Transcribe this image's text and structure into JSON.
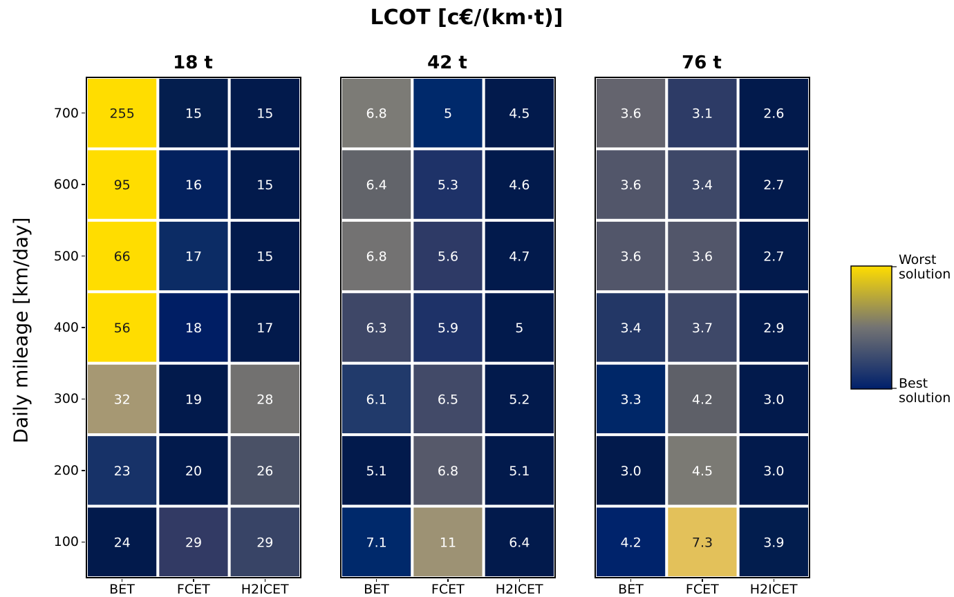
{
  "chart_data": {
    "type": "heatmap",
    "title": "LCOT [c€/(km·t)]",
    "ylabel": "Daily mileage [km/day]",
    "yticks": [
      "700",
      "600",
      "500",
      "400",
      "300",
      "200",
      "100"
    ],
    "xticks": [
      "BET",
      "FCET",
      "H2ICET"
    ],
    "colorbar": {
      "top_label": "Worst solution",
      "bottom_label": "Best solution",
      "colors": [
        "#FFDD00",
        "#737373",
        "#00206B"
      ]
    },
    "panels": [
      {
        "title": "18 t",
        "labels": [
          [
            "255",
            "15",
            "15"
          ],
          [
            "95",
            "16",
            "15"
          ],
          [
            "66",
            "17",
            "15"
          ],
          [
            "56",
            "18",
            "17"
          ],
          [
            "32",
            "19",
            "28"
          ],
          [
            "23",
            "20",
            "26"
          ],
          [
            "24",
            "29",
            "29"
          ]
        ],
        "colors": [
          [
            "#FFDD00",
            "#041E4E",
            "#021A4C"
          ],
          [
            "#FFDD00",
            "#03215E",
            "#021A4C"
          ],
          [
            "#FFDD00",
            "#0C2C65",
            "#021A4C"
          ],
          [
            "#FFDD00",
            "#001E64",
            "#021A4C"
          ],
          [
            "#A69873",
            "#021A4C",
            "#727170"
          ],
          [
            "#173268",
            "#021A4C",
            "#4A5166"
          ],
          [
            "#021A4C",
            "#323A64",
            "#384466"
          ]
        ],
        "text_dark": [
          [
            true,
            false,
            false
          ],
          [
            true,
            false,
            false
          ],
          [
            true,
            false,
            false
          ],
          [
            true,
            false,
            false
          ],
          [
            false,
            false,
            false
          ],
          [
            false,
            false,
            false
          ],
          [
            false,
            false,
            false
          ]
        ]
      },
      {
        "title": "42 t",
        "labels": [
          [
            "6.8",
            "5",
            "4.5"
          ],
          [
            "6.4",
            "5.3",
            "4.6"
          ],
          [
            "6.8",
            "5.6",
            "4.7"
          ],
          [
            "6.3",
            "5.9",
            "5"
          ],
          [
            "6.1",
            "6.5",
            "5.2"
          ],
          [
            "5.1",
            "6.8",
            "5.1"
          ],
          [
            "7.1",
            "11",
            "6.4"
          ]
        ],
        "colors": [
          [
            "#7C7B76",
            "#00296B",
            "#021A4C"
          ],
          [
            "#62646A",
            "#1E3268",
            "#021A4C"
          ],
          [
            "#737272",
            "#2E3A66",
            "#021A4C"
          ],
          [
            "#3E4767",
            "#1E3268",
            "#021A4C"
          ],
          [
            "#213A6B",
            "#424A68",
            "#021A4C"
          ],
          [
            "#021A4C",
            "#56596A",
            "#021A4C"
          ],
          [
            "#00296B",
            "#9D9274",
            "#021A4C"
          ]
        ],
        "text_dark": [
          [
            false,
            false,
            false
          ],
          [
            false,
            false,
            false
          ],
          [
            false,
            false,
            false
          ],
          [
            false,
            false,
            false
          ],
          [
            false,
            false,
            false
          ],
          [
            false,
            false,
            false
          ],
          [
            false,
            false,
            false
          ]
        ]
      },
      {
        "title": "76 t",
        "labels": [
          [
            "3.6",
            "3.1",
            "2.6"
          ],
          [
            "3.6",
            "3.4",
            "2.7"
          ],
          [
            "3.6",
            "3.6",
            "2.7"
          ],
          [
            "3.4",
            "3.7",
            "2.9"
          ],
          [
            "3.3",
            "4.2",
            "3.0"
          ],
          [
            "3.0",
            "4.5",
            "3.0"
          ],
          [
            "4.2",
            "7.3",
            "3.9"
          ]
        ],
        "colors": [
          [
            "#64646E",
            "#2D3B66",
            "#021A4C"
          ],
          [
            "#52566A",
            "#3E4868",
            "#021A4C"
          ],
          [
            "#52566A",
            "#52566A",
            "#021A4C"
          ],
          [
            "#233766",
            "#3E4868",
            "#021A4C"
          ],
          [
            "#002768",
            "#5E6068",
            "#021A4C"
          ],
          [
            "#021A4C",
            "#7B7A74",
            "#021A4C"
          ],
          [
            "#00236B",
            "#E3C15A",
            "#021D4E"
          ]
        ],
        "text_dark": [
          [
            false,
            false,
            false
          ],
          [
            false,
            false,
            false
          ],
          [
            false,
            false,
            false
          ],
          [
            false,
            false,
            false
          ],
          [
            false,
            false,
            false
          ],
          [
            false,
            false,
            false
          ],
          [
            false,
            true,
            false
          ]
        ]
      }
    ]
  }
}
